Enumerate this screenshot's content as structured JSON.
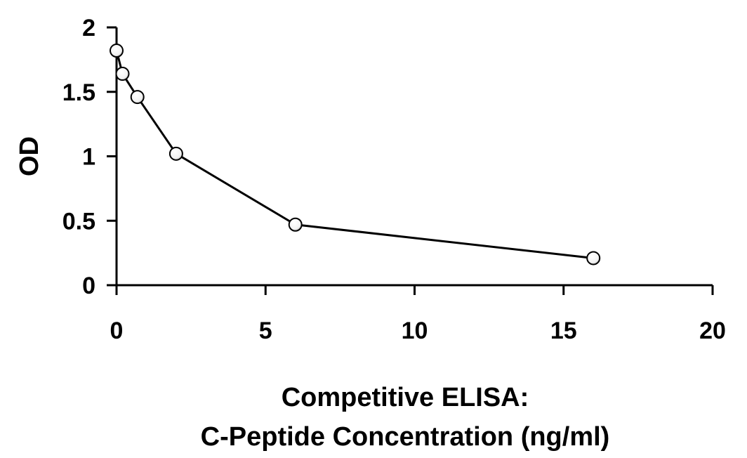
{
  "chart_data": {
    "type": "line",
    "title": "",
    "xlabel": [
      "Competitive ELISA:",
      "C-Peptide Concentration (ng/ml)"
    ],
    "ylabel": "OD",
    "xlim": [
      0,
      20
    ],
    "ylim": [
      0,
      2
    ],
    "xticks": [
      "0",
      "5",
      "10",
      "15",
      "20"
    ],
    "yticks": [
      "0",
      "0.5",
      "1",
      "1.5",
      "2"
    ],
    "grid": false,
    "legend": "none",
    "series": [
      {
        "x": [
          0,
          0.2,
          0.7,
          2,
          6,
          16
        ],
        "y": [
          1.82,
          1.64,
          1.46,
          1.02,
          0.47,
          0.21
        ],
        "line_color": "#000000",
        "marker": "open-circle"
      }
    ]
  }
}
